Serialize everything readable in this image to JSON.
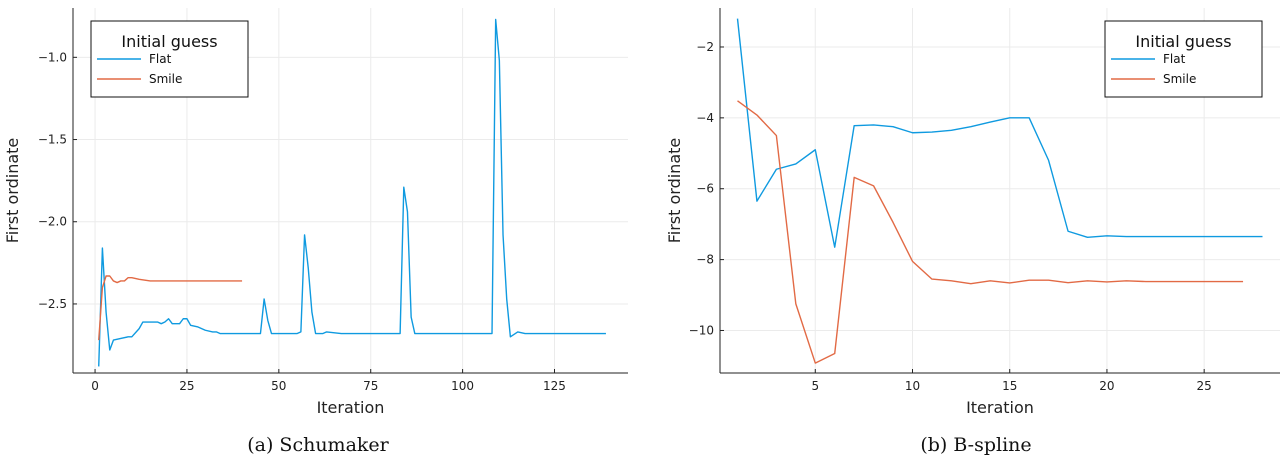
{
  "colors": {
    "flat": "#0f9ae0",
    "smile": "#e26a45"
  },
  "chart_data": [
    {
      "type": "line",
      "caption": "(a)  Schumaker",
      "xlabel": "Iteration",
      "ylabel": "First ordinate",
      "xlim": [
        -6,
        145
      ],
      "ylim": [
        -2.92,
        -0.7
      ],
      "xticks": [
        0,
        25,
        50,
        75,
        100,
        125
      ],
      "yticks": [
        -2.5,
        -2.0,
        -1.5,
        -1.0
      ],
      "ytick_labels": [
        "−2.5",
        "−2.0",
        "−1.5",
        "−1.0"
      ],
      "legend": {
        "title": "Initial guess",
        "position": "top-left"
      },
      "series": [
        {
          "name": "Flat",
          "color": "#0f9ae0",
          "points": [
            [
              1,
              -2.88
            ],
            [
              2,
              -2.16
            ],
            [
              3,
              -2.55
            ],
            [
              4,
              -2.78
            ],
            [
              5,
              -2.72
            ],
            [
              7,
              -2.71
            ],
            [
              9,
              -2.7
            ],
            [
              10,
              -2.7
            ],
            [
              12,
              -2.65
            ],
            [
              13,
              -2.61
            ],
            [
              15,
              -2.61
            ],
            [
              16,
              -2.61
            ],
            [
              17,
              -2.61
            ],
            [
              18,
              -2.62
            ],
            [
              19,
              -2.61
            ],
            [
              20,
              -2.59
            ],
            [
              21,
              -2.62
            ],
            [
              23,
              -2.62
            ],
            [
              24,
              -2.59
            ],
            [
              25,
              -2.59
            ],
            [
              26,
              -2.63
            ],
            [
              28,
              -2.64
            ],
            [
              30,
              -2.66
            ],
            [
              32,
              -2.67
            ],
            [
              33,
              -2.67
            ],
            [
              34,
              -2.68
            ],
            [
              36,
              -2.68
            ],
            [
              40,
              -2.68
            ],
            [
              44,
              -2.68
            ],
            [
              45,
              -2.68
            ],
            [
              46,
              -2.47
            ],
            [
              47,
              -2.6
            ],
            [
              48,
              -2.68
            ],
            [
              52,
              -2.68
            ],
            [
              55,
              -2.68
            ],
            [
              56,
              -2.67
            ],
            [
              57,
              -2.08
            ],
            [
              58,
              -2.28
            ],
            [
              59,
              -2.55
            ],
            [
              60,
              -2.68
            ],
            [
              62,
              -2.68
            ],
            [
              63,
              -2.67
            ],
            [
              67,
              -2.68
            ],
            [
              70,
              -2.68
            ],
            [
              80,
              -2.68
            ],
            [
              83,
              -2.68
            ],
            [
              84,
              -1.79
            ],
            [
              85,
              -1.94
            ],
            [
              86,
              -2.58
            ],
            [
              87,
              -2.68
            ],
            [
              88,
              -2.68
            ],
            [
              90,
              -2.68
            ],
            [
              100,
              -2.68
            ],
            [
              108,
              -2.68
            ],
            [
              109,
              -0.77
            ],
            [
              110,
              -1.02
            ],
            [
              111,
              -2.08
            ],
            [
              112,
              -2.47
            ],
            [
              113,
              -2.7
            ],
            [
              115,
              -2.67
            ],
            [
              117,
              -2.68
            ],
            [
              120,
              -2.68
            ],
            [
              125,
              -2.68
            ],
            [
              130,
              -2.68
            ],
            [
              135,
              -2.68
            ],
            [
              139,
              -2.68
            ]
          ]
        },
        {
          "name": "Smile",
          "color": "#e26a45",
          "points": [
            [
              1,
              -2.72
            ],
            [
              2,
              -2.4
            ],
            [
              3,
              -2.33
            ],
            [
              4,
              -2.33
            ],
            [
              5,
              -2.36
            ],
            [
              6,
              -2.37
            ],
            [
              7,
              -2.36
            ],
            [
              8,
              -2.36
            ],
            [
              9,
              -2.34
            ],
            [
              10,
              -2.34
            ],
            [
              12,
              -2.35
            ],
            [
              15,
              -2.36
            ],
            [
              20,
              -2.36
            ],
            [
              25,
              -2.36
            ],
            [
              30,
              -2.36
            ],
            [
              35,
              -2.36
            ],
            [
              40,
              -2.36
            ]
          ]
        }
      ]
    },
    {
      "type": "line",
      "caption": "(b)  B-spline",
      "xlabel": "Iteration",
      "ylabel": "First ordinate",
      "xlim": [
        0.1,
        28.9
      ],
      "ylim": [
        -11.2,
        -0.9
      ],
      "xticks": [
        5,
        10,
        15,
        20,
        25
      ],
      "yticks": [
        -10,
        -8,
        -6,
        -4,
        -2
      ],
      "ytick_labels": [
        "−10",
        "−8",
        "−6",
        "−4",
        "−2"
      ],
      "legend": {
        "title": "Initial guess",
        "position": "top-right"
      },
      "series": [
        {
          "name": "Flat",
          "color": "#0f9ae0",
          "points": [
            [
              1,
              -1.2
            ],
            [
              2,
              -6.35
            ],
            [
              3,
              -5.45
            ],
            [
              4,
              -5.3
            ],
            [
              5,
              -4.9
            ],
            [
              6,
              -7.65
            ],
            [
              7,
              -4.22
            ],
            [
              8,
              -4.2
            ],
            [
              9,
              -4.25
            ],
            [
              10,
              -4.42
            ],
            [
              11,
              -4.4
            ],
            [
              12,
              -4.35
            ],
            [
              13,
              -4.25
            ],
            [
              14,
              -4.12
            ],
            [
              15,
              -4.0
            ],
            [
              16,
              -4.0
            ],
            [
              17,
              -5.2
            ],
            [
              18,
              -7.2
            ],
            [
              19,
              -7.37
            ],
            [
              20,
              -7.33
            ],
            [
              21,
              -7.35
            ],
            [
              22,
              -7.35
            ],
            [
              23,
              -7.35
            ],
            [
              24,
              -7.35
            ],
            [
              25,
              -7.35
            ],
            [
              26,
              -7.35
            ],
            [
              27,
              -7.35
            ],
            [
              28,
              -7.35
            ]
          ]
        },
        {
          "name": "Smile",
          "color": "#e26a45",
          "points": [
            [
              1,
              -3.52
            ],
            [
              2,
              -3.92
            ],
            [
              3,
              -4.5
            ],
            [
              4,
              -9.25
            ],
            [
              5,
              -10.92
            ],
            [
              6,
              -10.65
            ],
            [
              7,
              -5.68
            ],
            [
              8,
              -5.92
            ],
            [
              9,
              -6.95
            ],
            [
              10,
              -8.05
            ],
            [
              11,
              -8.55
            ],
            [
              12,
              -8.6
            ],
            [
              13,
              -8.68
            ],
            [
              14,
              -8.6
            ],
            [
              15,
              -8.66
            ],
            [
              16,
              -8.58
            ],
            [
              17,
              -8.58
            ],
            [
              18,
              -8.65
            ],
            [
              19,
              -8.6
            ],
            [
              20,
              -8.63
            ],
            [
              21,
              -8.6
            ],
            [
              22,
              -8.62
            ],
            [
              23,
              -8.62
            ],
            [
              24,
              -8.62
            ],
            [
              25,
              -8.62
            ],
            [
              26,
              -8.62
            ],
            [
              27,
              -8.62
            ]
          ]
        }
      ]
    }
  ]
}
